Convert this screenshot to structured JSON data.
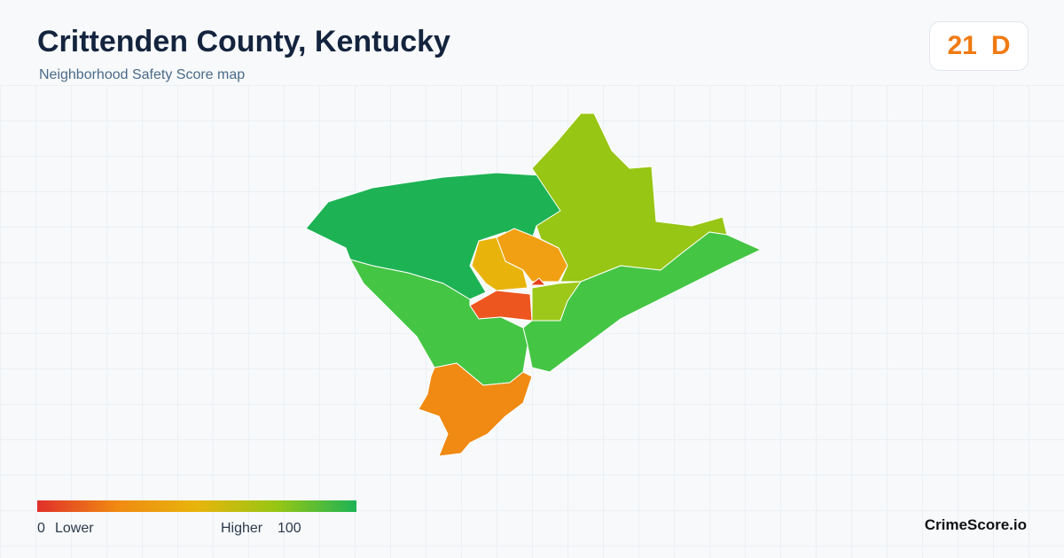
{
  "header": {
    "title": "Crittenden County, Kentucky",
    "subtitle": "Neighborhood Safety Score map"
  },
  "badge": {
    "score": 21,
    "grade": "D"
  },
  "legend": {
    "min": 0,
    "low_label": "Lower",
    "high_label": "Higher",
    "max": 100
  },
  "footer": {
    "brand": "CrimeScore.io"
  }
}
